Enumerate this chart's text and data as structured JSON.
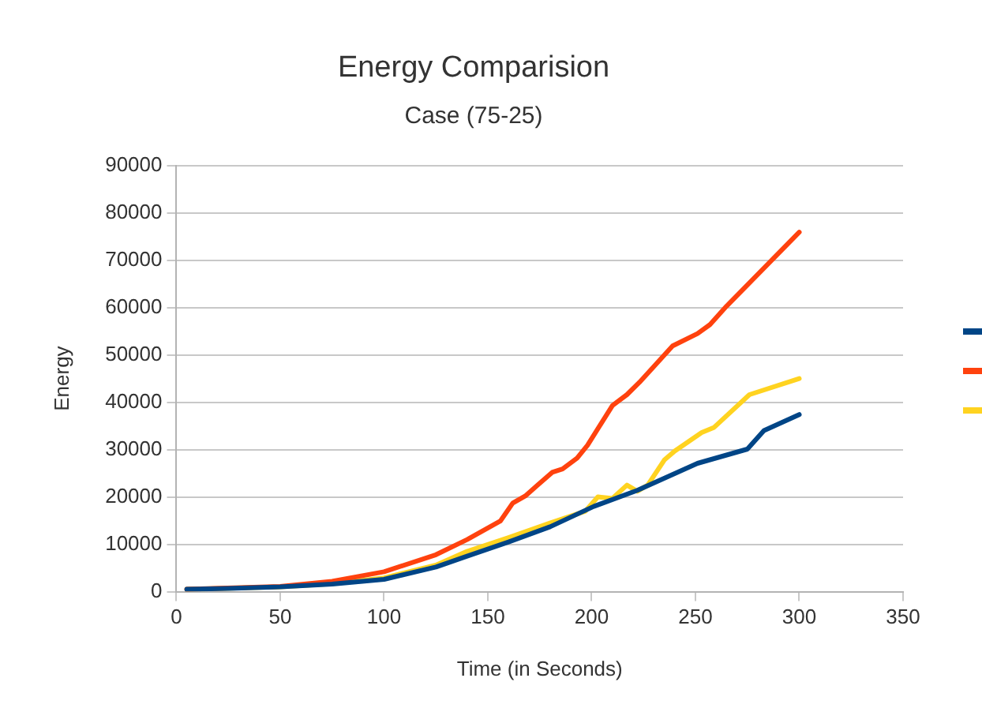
{
  "chart_data": {
    "type": "line",
    "title": "Energy Comparision",
    "subtitle": "Case (75-25)",
    "xlabel": "Time (in Seconds)",
    "ylabel": "Energy",
    "xlim": [
      0,
      350
    ],
    "xticks": [
      0,
      50,
      100,
      150,
      200,
      250,
      300,
      350
    ],
    "ylim": [
      0,
      90000
    ],
    "yticks": [
      0,
      10000,
      20000,
      30000,
      40000,
      50000,
      60000,
      70000,
      80000,
      90000
    ],
    "grid": "y",
    "marker": "none",
    "line_style": "solid",
    "series": [
      {
        "color": "#004586",
        "x": [
          5,
          25,
          50,
          75,
          100,
          125,
          140,
          160,
          180,
          201,
          222,
          251,
          275,
          283,
          300
        ],
        "values": [
          500,
          700,
          1000,
          1600,
          2600,
          5200,
          7500,
          10500,
          13700,
          18000,
          21400,
          27100,
          30100,
          34000,
          37400
        ]
      },
      {
        "color": "#ff420e",
        "x": [
          5,
          50,
          75,
          100,
          125,
          140,
          156,
          162,
          168,
          174,
          181,
          186,
          193,
          198,
          210,
          217,
          223,
          239,
          251,
          257,
          265,
          300
        ],
        "values": [
          500,
          1100,
          2200,
          4200,
          7800,
          11000,
          14900,
          18700,
          20200,
          22500,
          25200,
          25900,
          28200,
          30900,
          39300,
          41600,
          44200,
          51900,
          54500,
          56400,
          60300,
          75900
        ]
      },
      {
        "color": "#ffd320",
        "x": [
          5,
          50,
          75,
          100,
          125,
          140,
          160,
          180,
          197,
          203,
          210,
          217,
          222,
          227,
          235,
          240,
          253,
          259,
          276,
          300
        ],
        "values": [
          500,
          1000,
          1700,
          2900,
          5600,
          8500,
          11400,
          14500,
          17000,
          20000,
          19700,
          22500,
          21200,
          22500,
          27800,
          29700,
          33600,
          34700,
          41600,
          45000
        ]
      }
    ]
  }
}
